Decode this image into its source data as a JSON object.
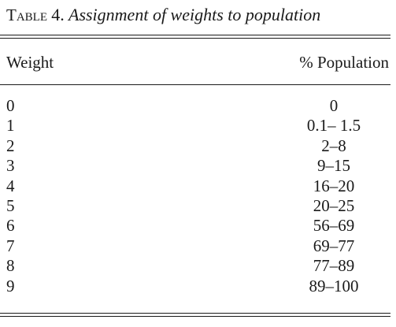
{
  "caption": {
    "label": "Table",
    "number": "4.",
    "title": "Assignment of weights to population"
  },
  "table": {
    "headers": {
      "weight": "Weight",
      "population": "% Population"
    },
    "rows": [
      {
        "weight": "0",
        "population": "0"
      },
      {
        "weight": "1",
        "population": "0.1– 1.5"
      },
      {
        "weight": "2",
        "population": "2–8"
      },
      {
        "weight": "3",
        "population": "9–15"
      },
      {
        "weight": "4",
        "population": "16–20"
      },
      {
        "weight": "5",
        "population": "20–25"
      },
      {
        "weight": "6",
        "population": "56–69"
      },
      {
        "weight": "7",
        "population": "69–77"
      },
      {
        "weight": "8",
        "population": "77–89"
      },
      {
        "weight": "9",
        "population": "89–100"
      }
    ]
  }
}
